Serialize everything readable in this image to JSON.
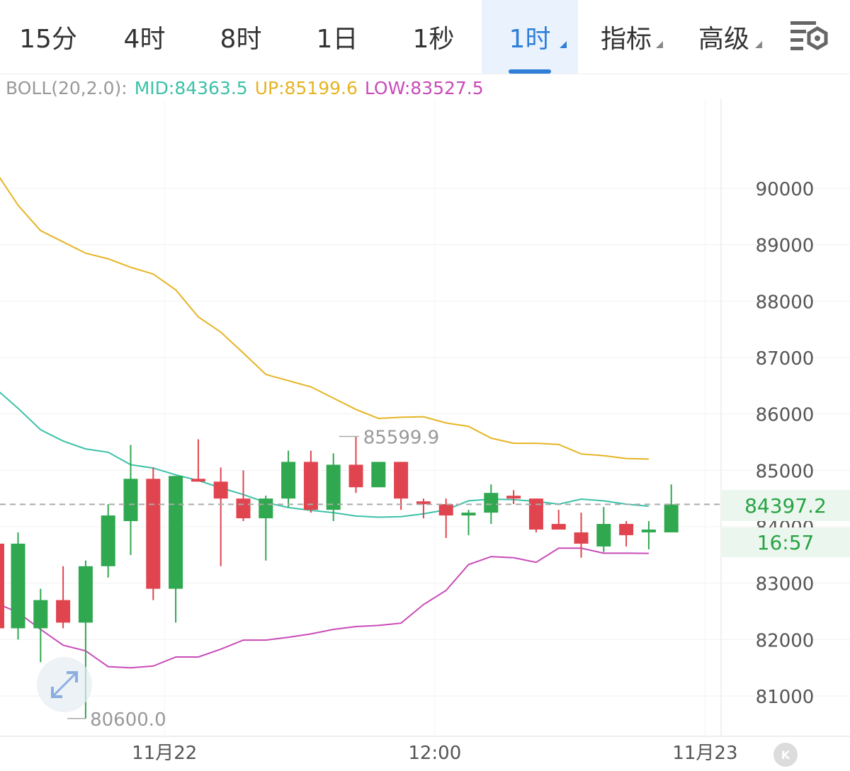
{
  "tabs": [
    {
      "label": "15分",
      "active": false,
      "dropdown": false
    },
    {
      "label": "4时",
      "active": false,
      "dropdown": false
    },
    {
      "label": "8时",
      "active": false,
      "dropdown": false
    },
    {
      "label": "1日",
      "active": false,
      "dropdown": false
    },
    {
      "label": "1秒",
      "active": false,
      "dropdown": false
    },
    {
      "label": "1时",
      "active": true,
      "dropdown": true
    },
    {
      "label": "指标",
      "active": false,
      "dropdown": true
    },
    {
      "label": "高级",
      "active": false,
      "dropdown": true
    }
  ],
  "settings_icon": "chart-settings-icon",
  "indicator": {
    "name": "BOLL(20,2.0):",
    "mid": "MID:84363.5",
    "up": "UP:85199.6",
    "low": "LOW:83527.5"
  },
  "colors": {
    "accent": "#2f7fd8",
    "up_candle": "#2fa84f",
    "down_candle": "#e0454f",
    "mid": "#3cc1a8",
    "upper": "#e6b422",
    "lower": "#c94bb8",
    "muted": "#999999"
  },
  "current_price": "84397.2",
  "countdown": "16:57",
  "badge": "K",
  "chart_data": {
    "type": "candlestick",
    "y_ticks": [
      "90000",
      "89000",
      "88000",
      "87000",
      "86000",
      "85000",
      "84000",
      "83000",
      "82000",
      "81000"
    ],
    "ylim": [
      80500,
      90500
    ],
    "x_labels": [
      {
        "label": "11月22",
        "index": 6.5
      },
      {
        "label": "12:00",
        "index": 18.5
      },
      {
        "label": "11月23",
        "index": 30.5
      }
    ],
    "high_marker": {
      "label": "85599.9",
      "index": 14,
      "value": 85599.9
    },
    "low_marker": {
      "label": "80600.0",
      "index": 2,
      "value": 80600.0
    },
    "current_price_value": 84397.2,
    "candles": [
      {
        "o": 82200,
        "h": 83900,
        "l": 82000,
        "c": 83700
      },
      {
        "o": 82200,
        "h": 82900,
        "l": 81600,
        "c": 82700
      },
      {
        "o": 82700,
        "h": 83300,
        "l": 82200,
        "c": 82300
      },
      {
        "o": 82300,
        "h": 83400,
        "l": 80600,
        "c": 83300
      },
      {
        "o": 83300,
        "h": 84400,
        "l": 83100,
        "c": 84200
      },
      {
        "o": 84100,
        "h": 85450,
        "l": 83500,
        "c": 84850
      },
      {
        "o": 84850,
        "h": 85050,
        "l": 82700,
        "c": 82900
      },
      {
        "o": 82900,
        "h": 84900,
        "l": 82300,
        "c": 84900
      },
      {
        "o": 84850,
        "h": 85550,
        "l": 84800,
        "c": 84800
      },
      {
        "o": 84800,
        "h": 85050,
        "l": 83300,
        "c": 84500
      },
      {
        "o": 84500,
        "h": 85000,
        "l": 84100,
        "c": 84150
      },
      {
        "o": 84150,
        "h": 84550,
        "l": 83400,
        "c": 84500
      },
      {
        "o": 84500,
        "h": 85350,
        "l": 84350,
        "c": 85150
      },
      {
        "o": 85150,
        "h": 85350,
        "l": 84250,
        "c": 84300
      },
      {
        "o": 84300,
        "h": 85300,
        "l": 84100,
        "c": 85100
      },
      {
        "o": 85100,
        "h": 85599.9,
        "l": 84600,
        "c": 84700
      },
      {
        "o": 84700,
        "h": 85150,
        "l": 84700,
        "c": 85150
      },
      {
        "o": 85150,
        "h": 85150,
        "l": 84300,
        "c": 84500
      },
      {
        "o": 84450,
        "h": 84500,
        "l": 84150,
        "c": 84400
      },
      {
        "o": 84400,
        "h": 84500,
        "l": 83800,
        "c": 84200
      },
      {
        "o": 84200,
        "h": 84300,
        "l": 83850,
        "c": 84250
      },
      {
        "o": 84250,
        "h": 84750,
        "l": 84050,
        "c": 84600
      },
      {
        "o": 84550,
        "h": 84650,
        "l": 84400,
        "c": 84500
      },
      {
        "o": 84500,
        "h": 84500,
        "l": 83900,
        "c": 83950
      },
      {
        "o": 84050,
        "h": 84300,
        "l": 83950,
        "c": 83950
      },
      {
        "o": 83900,
        "h": 84250,
        "l": 83450,
        "c": 83700
      },
      {
        "o": 83650,
        "h": 84350,
        "l": 83550,
        "c": 84050
      },
      {
        "o": 84050,
        "h": 84100,
        "l": 83650,
        "c": 83850
      },
      {
        "o": 83900,
        "h": 84100,
        "l": 83600,
        "c": 83950
      },
      {
        "o": 83900,
        "h": 84750,
        "l": 83900,
        "c": 84397.2
      }
    ],
    "candle_first_index": 0,
    "series": [
      {
        "key": "upper",
        "color": "#e6b422",
        "start_index": -1,
        "values": [
          90300,
          89700,
          89250,
          89050,
          88850,
          88750,
          88600,
          88480,
          88200,
          87720,
          87450,
          87080,
          86700,
          86590,
          86480,
          86280,
          86080,
          85920,
          85940,
          85950,
          85840,
          85780,
          85570,
          85480,
          85480,
          85460,
          85290,
          85260,
          85210,
          85200
        ]
      },
      {
        "key": "mid",
        "color": "#3cc1a8",
        "start_index": -1,
        "values": [
          86450,
          86100,
          85720,
          85520,
          85380,
          85320,
          85100,
          85040,
          84920,
          84820,
          84690,
          84570,
          84430,
          84340,
          84290,
          84250,
          84190,
          84170,
          84180,
          84230,
          84300,
          84460,
          84490,
          84480,
          84450,
          84400,
          84490,
          84460,
          84400,
          84363.5
        ]
      },
      {
        "key": "lower",
        "color": "#c94bb8",
        "start_index": -1,
        "values": [
          82650,
          82480,
          82180,
          81900,
          81800,
          81520,
          81500,
          81530,
          81690,
          81690,
          81830,
          81990,
          81990,
          82040,
          82100,
          82180,
          82230,
          82250,
          82290,
          82620,
          82870,
          83330,
          83470,
          83450,
          83370,
          83620,
          83620,
          83530,
          83530,
          83527.5
        ]
      }
    ]
  }
}
